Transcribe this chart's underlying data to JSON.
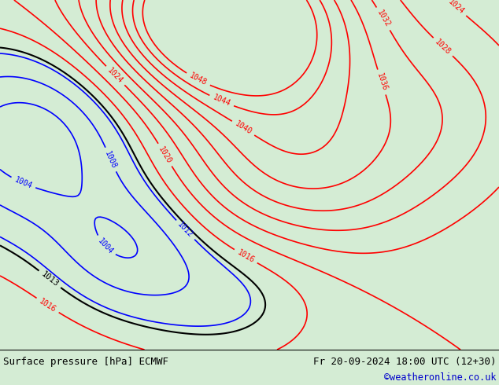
{
  "title_left": "Surface pressure [hPa] ECMWF",
  "title_right": "Fr 20-09-2024 18:00 UTC (12+30)",
  "copyright": "©weatheronline.co.uk",
  "bg_color": "#d4ecd4",
  "land_color": "#d4ecd4",
  "sea_color": "#d4ecd4",
  "text_color_black": "#000000",
  "text_color_blue": "#0000aa",
  "bottom_bar_color": "#f0f0f0",
  "bottom_bar_height": 45,
  "fig_width": 6.34,
  "fig_height": 4.9,
  "dpi": 100
}
